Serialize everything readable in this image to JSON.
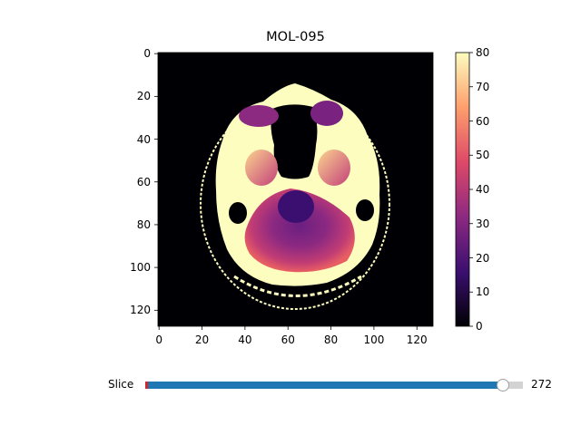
{
  "window": {
    "title": "MOL-095"
  },
  "viewer": {
    "colormap": "magma",
    "x_ticks": [
      "0",
      "20",
      "40",
      "60",
      "80",
      "100",
      "120"
    ],
    "y_ticks": [
      "0",
      "20",
      "40",
      "60",
      "80",
      "100",
      "120"
    ],
    "image_extent": [
      0,
      127
    ],
    "colorbar": {
      "min": 0,
      "max": 80,
      "ticks": [
        "0",
        "10",
        "20",
        "30",
        "40",
        "50",
        "60",
        "70",
        "80"
      ],
      "colors": [
        "#000004",
        "#3b0f70",
        "#8c2981",
        "#de4968",
        "#fe9f6d",
        "#fcfdbf"
      ]
    }
  },
  "slider": {
    "label": "Slice",
    "value": 272,
    "value_text": "272",
    "fraction": 0.947,
    "fill_color": "#1f77b4",
    "track_color": "#d3d3d3"
  }
}
